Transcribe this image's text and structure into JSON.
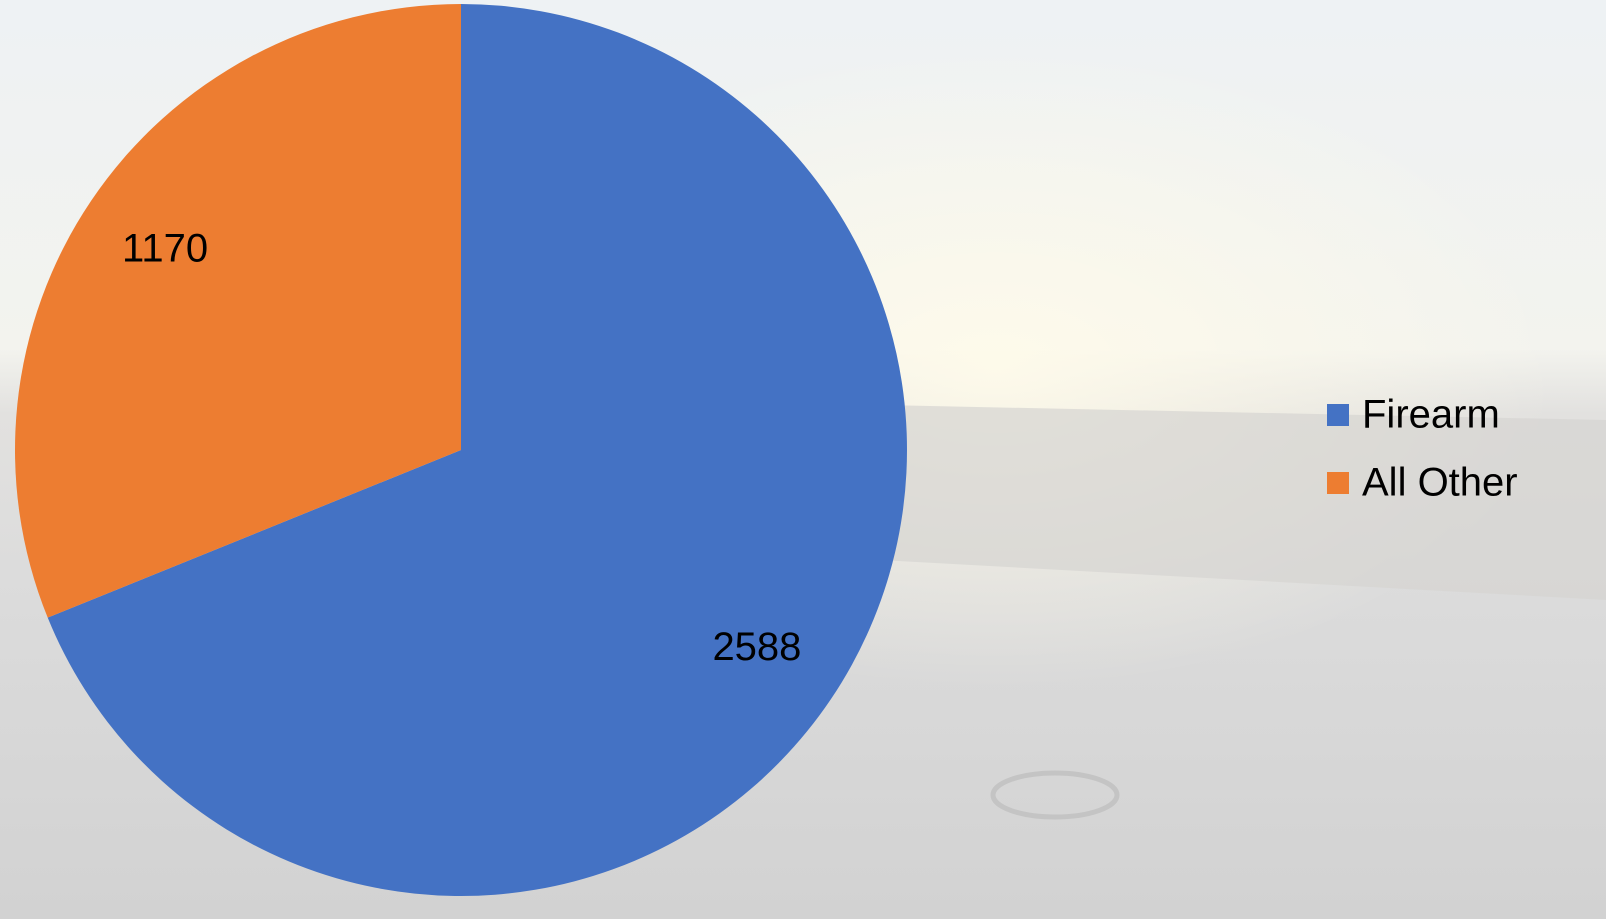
{
  "chart_data": {
    "type": "pie",
    "categories": [
      "Firearm",
      "All Other"
    ],
    "values": [
      2588,
      1170
    ],
    "colors": [
      "#4472c4",
      "#ed7d31"
    ],
    "legend": "right",
    "start_angle": 0,
    "direction": "clockwise"
  }
}
